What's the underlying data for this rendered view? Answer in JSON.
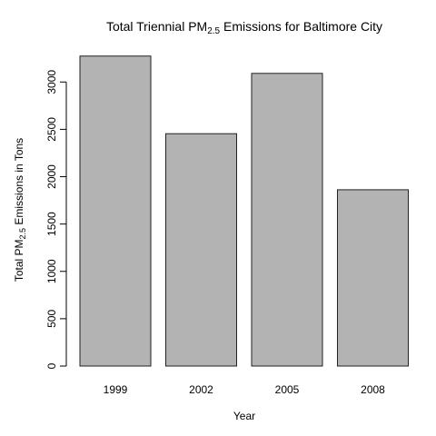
{
  "chart_data": {
    "type": "bar",
    "title": {
      "prefix": "Total Triennial PM",
      "subscript": "2.5",
      "suffix": " Emissions for Baltimore City"
    },
    "xlabel": "Year",
    "ylabel": {
      "prefix": "Total PM",
      "subscript": "2.5",
      "suffix": " Emissions in Tons"
    },
    "categories": [
      "1999",
      "2002",
      "2005",
      "2008"
    ],
    "values": [
      3274,
      2454,
      3091,
      1862
    ],
    "ylim": [
      0,
      3300
    ],
    "yticks": [
      0,
      500,
      1000,
      1500,
      2000,
      2500,
      3000
    ],
    "colors": {
      "bar_fill": "#b3b3b3",
      "bar_stroke": "#222222"
    },
    "grid": false,
    "legend": "none"
  }
}
